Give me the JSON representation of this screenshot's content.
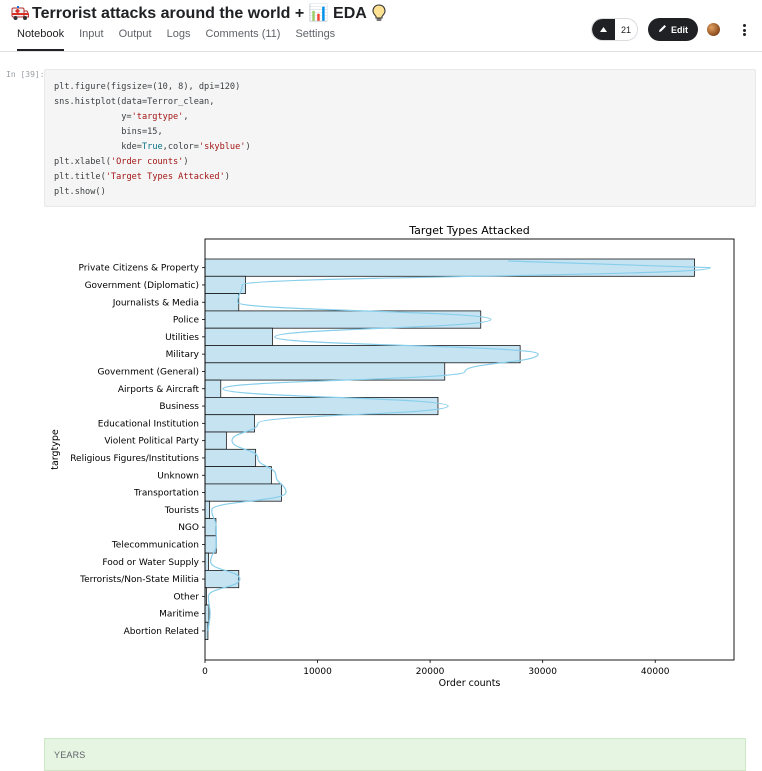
{
  "notebook": {
    "title": "Terrorist attacks around the world + 📊 EDA",
    "tabs": [
      "Notebook",
      "Input",
      "Output",
      "Logs",
      "Comments (11)",
      "Settings"
    ],
    "active_tab": "Notebook",
    "vote_count": "21",
    "edit_label": "Edit"
  },
  "cell": {
    "prompt": "In [39]:",
    "code": [
      "plt.figure(figsize=(10, 8), dpi=120)",
      "sns.histplot(data=Terror_clean,",
      "             y='targtype',",
      "             bins=15,",
      "             kde=True,color='skyblue')",
      "plt.xlabel('Order counts')",
      "plt.title('Target Types Attacked')",
      "plt.show()"
    ]
  },
  "chart_data": {
    "type": "bar",
    "orientation": "horizontal",
    "title": "Target Types Attacked",
    "xlabel": "Order counts",
    "ylabel": "targtype",
    "xlim": [
      0,
      47000
    ],
    "xticks": [
      0,
      10000,
      20000,
      30000,
      40000
    ],
    "bar_color": "#c6e3f2",
    "bar_edge": "#1a1a1a",
    "kde_color": "#87ceeb",
    "categories": [
      "Private Citizens & Property",
      "Government (Diplomatic)",
      "Journalists & Media",
      "Police",
      "Utilities",
      "Military",
      "Government (General)",
      "Airports & Aircraft",
      "Business",
      "Educational Institution",
      "Violent Political Party",
      "Religious Figures/Institutions",
      "Unknown",
      "Transportation",
      "Tourists",
      "NGO",
      "Telecommunication",
      "Food or Water Supply",
      "Terrorists/Non-State Militia",
      "Other",
      "Maritime",
      "Abortion Related"
    ],
    "values": [
      43500,
      3600,
      3000,
      24500,
      6000,
      28000,
      21300,
      1400,
      20700,
      4400,
      1900,
      4500,
      5900,
      6800,
      400,
      970,
      1000,
      320,
      3000,
      140,
      350,
      260
    ],
    "kde_values": [
      44900,
      3300,
      2900,
      25400,
      6200,
      29600,
      23100,
      1600,
      21600,
      4700,
      2400,
      4700,
      6300,
      7200,
      600,
      1000,
      1000,
      500,
      3100,
      300,
      450,
      300
    ]
  },
  "markdown": {
    "text": "YEARS"
  }
}
